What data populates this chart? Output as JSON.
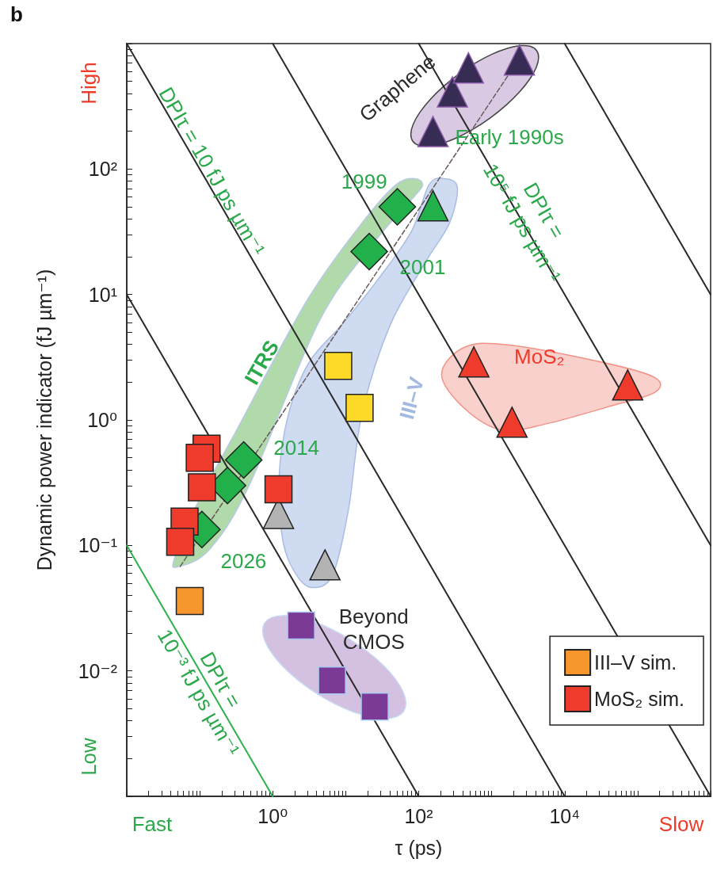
{
  "chart_data": {
    "type": "scatter",
    "title": "b",
    "xlabel": "τ (ps)",
    "ylabel": "Dynamic power indicator (fJ µm⁻¹)",
    "log": "xy",
    "grid": false,
    "legend": "bottom right",
    "xlim": [
      0.01,
      1000000
    ],
    "ylim": [
      0.001,
      1000
    ],
    "xticks": [
      {
        "value": 0.01,
        "label": null
      },
      {
        "value": 0.02,
        "label": null
      },
      {
        "value": 0.03,
        "label": null
      },
      {
        "value": 0.04,
        "label": null
      },
      {
        "value": 0.05,
        "label": null
      },
      {
        "value": 0.06,
        "label": null
      },
      {
        "value": 0.07,
        "label": null
      },
      {
        "value": 0.08,
        "label": null
      },
      {
        "value": 0.09,
        "label": null
      },
      {
        "value": 0.1,
        "label": null
      },
      {
        "value": 0.2,
        "label": null
      },
      {
        "value": 0.3,
        "label": null
      },
      {
        "value": 0.4,
        "label": null
      },
      {
        "value": 0.5,
        "label": null
      },
      {
        "value": 0.6,
        "label": null
      },
      {
        "value": 0.7,
        "label": null
      },
      {
        "value": 0.8,
        "label": null
      },
      {
        "value": 0.9,
        "label": null
      },
      {
        "value": 1,
        "label": "10⁰"
      },
      {
        "value": 2,
        "label": null
      },
      {
        "value": 3,
        "label": null
      },
      {
        "value": 4,
        "label": null
      },
      {
        "value": 5,
        "label": null
      },
      {
        "value": 6,
        "label": null
      },
      {
        "value": 7,
        "label": null
      },
      {
        "value": 8,
        "label": null
      },
      {
        "value": 9,
        "label": null
      },
      {
        "value": 10,
        "label": null
      },
      {
        "value": 20,
        "label": null
      },
      {
        "value": 30,
        "label": null
      },
      {
        "value": 40,
        "label": null
      },
      {
        "value": 50,
        "label": null
      },
      {
        "value": 60,
        "label": null
      },
      {
        "value": 70,
        "label": null
      },
      {
        "value": 80,
        "label": null
      },
      {
        "value": 90,
        "label": null
      },
      {
        "value": 100,
        "label": "10²"
      },
      {
        "value": 200,
        "label": null
      },
      {
        "value": 300,
        "label": null
      },
      {
        "value": 400,
        "label": null
      },
      {
        "value": 500,
        "label": null
      },
      {
        "value": 600,
        "label": null
      },
      {
        "value": 700,
        "label": null
      },
      {
        "value": 800,
        "label": null
      },
      {
        "value": 900,
        "label": null
      },
      {
        "value": 1000,
        "label": null
      },
      {
        "value": 2000,
        "label": null
      },
      {
        "value": 3000,
        "label": null
      },
      {
        "value": 4000,
        "label": null
      },
      {
        "value": 5000,
        "label": null
      },
      {
        "value": 6000,
        "label": null
      },
      {
        "value": 7000,
        "label": null
      },
      {
        "value": 8000,
        "label": null
      },
      {
        "value": 9000,
        "label": null
      },
      {
        "value": 10000,
        "label": "10⁴"
      },
      {
        "value": 20000,
        "label": null
      },
      {
        "value": 30000,
        "label": null
      },
      {
        "value": 40000,
        "label": null
      },
      {
        "value": 50000,
        "label": null
      },
      {
        "value": 60000,
        "label": null
      },
      {
        "value": 70000,
        "label": null
      },
      {
        "value": 80000,
        "label": null
      },
      {
        "value": 90000,
        "label": null
      },
      {
        "value": 100000,
        "label": null
      },
      {
        "value": 200000,
        "label": null
      },
      {
        "value": 300000,
        "label": null
      },
      {
        "value": 400000,
        "label": null
      },
      {
        "value": 500000,
        "label": null
      },
      {
        "value": 600000,
        "label": null
      },
      {
        "value": 700000,
        "label": null
      },
      {
        "value": 800000,
        "label": null
      },
      {
        "value": 900000,
        "label": null
      },
      {
        "value": 1000000,
        "label": null
      }
    ],
    "yticks": [
      {
        "value": 0.001,
        "label": null
      },
      {
        "value": 0.002,
        "label": null
      },
      {
        "value": 0.003,
        "label": null
      },
      {
        "value": 0.004,
        "label": null
      },
      {
        "value": 0.005,
        "label": null
      },
      {
        "value": 0.006,
        "label": null
      },
      {
        "value": 0.007,
        "label": null
      },
      {
        "value": 0.008,
        "label": null
      },
      {
        "value": 0.009,
        "label": null
      },
      {
        "value": 0.01,
        "label": "10⁻²"
      },
      {
        "value": 0.02,
        "label": null
      },
      {
        "value": 0.03,
        "label": null
      },
      {
        "value": 0.04,
        "label": null
      },
      {
        "value": 0.05,
        "label": null
      },
      {
        "value": 0.06,
        "label": null
      },
      {
        "value": 0.07,
        "label": null
      },
      {
        "value": 0.08,
        "label": null
      },
      {
        "value": 0.09,
        "label": null
      },
      {
        "value": 0.1,
        "label": "10⁻¹"
      },
      {
        "value": 0.2,
        "label": null
      },
      {
        "value": 0.3,
        "label": null
      },
      {
        "value": 0.4,
        "label": null
      },
      {
        "value": 0.5,
        "label": null
      },
      {
        "value": 0.6,
        "label": null
      },
      {
        "value": 0.7,
        "label": null
      },
      {
        "value": 0.8,
        "label": null
      },
      {
        "value": 0.9,
        "label": null
      },
      {
        "value": 1,
        "label": "10⁰"
      },
      {
        "value": 2,
        "label": null
      },
      {
        "value": 3,
        "label": null
      },
      {
        "value": 4,
        "label": null
      },
      {
        "value": 5,
        "label": null
      },
      {
        "value": 6,
        "label": null
      },
      {
        "value": 7,
        "label": null
      },
      {
        "value": 8,
        "label": null
      },
      {
        "value": 9,
        "label": null
      },
      {
        "value": 10,
        "label": "10¹"
      },
      {
        "value": 20,
        "label": null
      },
      {
        "value": 30,
        "label": null
      },
      {
        "value": 40,
        "label": null
      },
      {
        "value": 50,
        "label": null
      },
      {
        "value": 60,
        "label": null
      },
      {
        "value": 70,
        "label": null
      },
      {
        "value": 80,
        "label": null
      },
      {
        "value": 90,
        "label": null
      },
      {
        "value": 100,
        "label": "10²"
      },
      {
        "value": 200,
        "label": null
      },
      {
        "value": 300,
        "label": null
      },
      {
        "value": 400,
        "label": null
      },
      {
        "value": 500,
        "label": null
      },
      {
        "value": 600,
        "label": null
      },
      {
        "value": 700,
        "label": null
      },
      {
        "value": 800,
        "label": null
      },
      {
        "value": 900,
        "label": null
      },
      {
        "value": 1000,
        "label": null
      }
    ],
    "series": [
      {
        "type": "line",
        "color": "#2a2a2a",
        "marker": "none",
        "line_style": "solid",
        "x": [
          0.01,
          100
        ],
        "values": [
          10,
          0.001
        ]
      },
      {
        "type": "line",
        "color": "#2a2a2a",
        "marker": "none",
        "line_style": "solid",
        "x": [
          0.01,
          10000
        ],
        "values": [
          1000,
          0.001
        ]
      },
      {
        "type": "line",
        "color": "#2a2a2a",
        "marker": "none",
        "line_style": "solid",
        "x": [
          1,
          1000000
        ],
        "values": [
          1000,
          0.001
        ]
      },
      {
        "type": "line",
        "color": "#2a2a2a",
        "marker": "none",
        "line_style": "solid",
        "x": [
          100,
          1000000
        ],
        "values": [
          1000,
          0.1
        ]
      },
      {
        "type": "line",
        "color": "#2a2a2a",
        "marker": "none",
        "line_style": "solid",
        "x": [
          10000,
          1000000
        ],
        "values": [
          1000,
          10
        ]
      },
      {
        "type": "line",
        "color": "#2bb24c",
        "marker": "none",
        "line_style": "solid",
        "x": [
          0.01,
          1
        ],
        "values": [
          0.1,
          0.001
        ]
      },
      {
        "type": "line",
        "color": "#6a5a5a",
        "marker": "none",
        "line_style": "dashed",
        "x": [
          0.054,
          2750
        ],
        "values": [
          0.068,
          855
        ]
      },
      {
        "color": "#22b04b",
        "marker": "diamond",
        "x": [
          0.107,
          0.24,
          0.4,
          21,
          51
        ],
        "values": [
          0.134,
          0.3,
          0.48,
          22,
          50
        ]
      },
      {
        "color": "#22b04b",
        "marker": "triangle",
        "x": [
          157
        ],
        "values": [
          51
        ]
      },
      {
        "color": "#fdd928",
        "marker": "square",
        "x": [
          7.9,
          15.5
        ],
        "values": [
          2.7,
          1.25
        ]
      },
      {
        "color": "#b3b3b3",
        "marker": "triangle",
        "x": [
          1.2,
          5.2
        ],
        "values": [
          0.18,
          0.07
        ]
      },
      {
        "color": "#7b3a96",
        "marker": "square",
        "x": [
          2.45,
          6.5,
          25
        ],
        "values": [
          0.023,
          0.0084,
          0.0052
        ]
      },
      {
        "color": "#372d54",
        "marker": "triangle",
        "x": [
          157,
          290,
          480,
          2400
        ],
        "values": [
          199,
          412,
          640,
          740
        ]
      },
      {
        "color": "#ee3b2b",
        "marker": "triangle",
        "x": [
          570,
          1900,
          73000
        ],
        "values": [
          2.9,
          0.96,
          1.9
        ]
      },
      {
        "name": "III–V sim.",
        "color": "#f7962c",
        "marker": "square",
        "x": [
          0.073
        ],
        "values": [
          0.036
        ]
      },
      {
        "name": "MoS₂ sim.",
        "color": "#ee3b2b",
        "marker": "square",
        "x": [
          0.124,
          0.1,
          0.107,
          0.062,
          0.054,
          1.2
        ],
        "values": [
          0.59,
          0.5,
          0.29,
          0.155,
          0.107,
          0.28
        ]
      }
    ],
    "annotations": [
      "DPIτ = 10 fJ ps µm⁻¹",
      "DPIτ = 10⁵ fJ ps µm⁻¹",
      "DPIτ = 10⁻³ fJ ps µm⁻¹",
      "Graphene",
      "Early 1990s",
      "1999",
      "2001",
      "2014",
      "2026",
      "ITRS",
      "III–V",
      "MoS₂",
      "Beyond CMOS",
      "High",
      "Low",
      "Fast",
      "Slow"
    ]
  }
}
